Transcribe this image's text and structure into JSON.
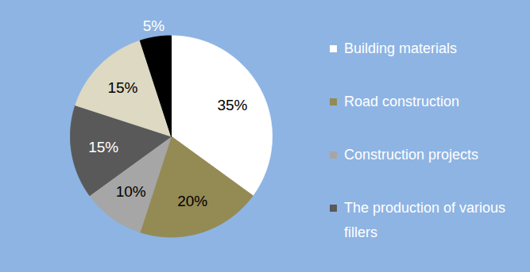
{
  "chart_data": {
    "type": "pie",
    "categories": [
      "Building materials",
      "Road construction",
      "Construction projects",
      "The production of various fillers",
      null,
      null
    ],
    "values": [
      35,
      20,
      10,
      15,
      15,
      5
    ],
    "value_labels": [
      "35%",
      "20%",
      "10%",
      "15%",
      "15%",
      "5%"
    ],
    "colors": [
      "#ffffff",
      "#948a54",
      "#a6a6a6",
      "#595959",
      "#ddd9c3",
      "#000000"
    ],
    "data_labels": true,
    "legend": "right"
  }
}
